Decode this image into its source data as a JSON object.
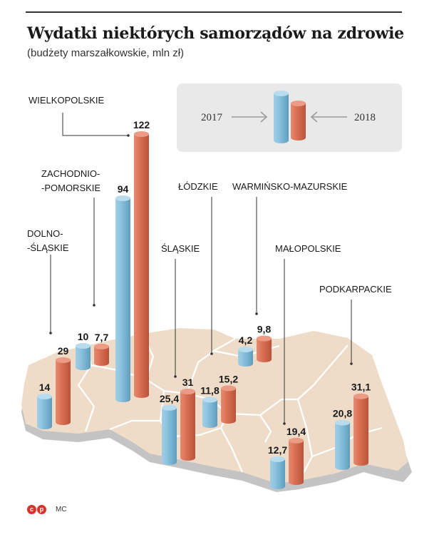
{
  "title": "Wydatki niektórych samorządów na zdrowie",
  "subtitle": "(budżety marszałkowskie, mln zł)",
  "footer": {
    "logo1": "c",
    "logo2": "p",
    "author": "MC"
  },
  "colors": {
    "y2017": "#7fb9d6",
    "y2018": "#d86a4f",
    "map": "#efdcc8",
    "map_side": "#c9c9c9",
    "legend_bg": "#e9e9e9"
  },
  "chart_data": {
    "type": "bar",
    "series": [
      {
        "name": "2017",
        "values": [
          14,
          10,
          94,
          25.4,
          11.8,
          4.2,
          12.7,
          20.8
        ]
      },
      {
        "name": "2018",
        "values": [
          29,
          7.7,
          122,
          31,
          15.2,
          9.8,
          19.4,
          31.1
        ]
      }
    ],
    "categories": [
      {
        "name": "DOLNOŚLĄSKIE",
        "label": [
          "DOLNO-",
          "-ŚLĄSKIE"
        ],
        "v2017": "14",
        "v2018": "29"
      },
      {
        "name": "ZACHODNIOPOMORSKIE",
        "label": [
          "ZACHODNIO-",
          "-POMORSKIE"
        ],
        "v2017": "10",
        "v2018": "7,7"
      },
      {
        "name": "WIELKOPOLSKIE",
        "label": [
          "WIELKOPOLSKIE"
        ],
        "v2017": "94",
        "v2018": "122"
      },
      {
        "name": "ŚLĄSKIE",
        "label": [
          "ŚLĄSKIE"
        ],
        "v2017": "25,4",
        "v2018": "31"
      },
      {
        "name": "ŁÓDZKIE",
        "label": [
          "ŁÓDZKIE"
        ],
        "v2017": "11,8",
        "v2018": "15,2"
      },
      {
        "name": "WARMIŃSKO-MAZURSKIE",
        "label": [
          "WARMIŃSKO-MAZURSKIE"
        ],
        "v2017": "4,2",
        "v2018": "9,8"
      },
      {
        "name": "MAŁOPOLSKIE",
        "label": [
          "MAŁOPOLSKIE"
        ],
        "v2017": "12,7",
        "v2018": "19,4"
      },
      {
        "name": "PODKARPACKIE",
        "label": [
          "PODKARPACKIE"
        ],
        "v2017": "20,8",
        "v2018": "31,1"
      }
    ],
    "legend": {
      "left": "2017",
      "right": "2018"
    }
  }
}
